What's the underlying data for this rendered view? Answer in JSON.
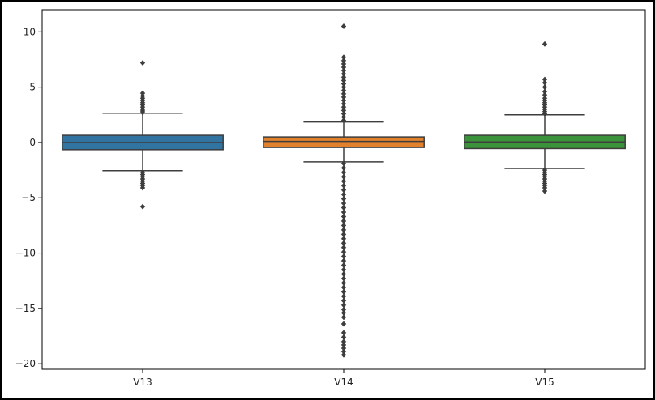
{
  "chart_data": {
    "type": "box",
    "categories": [
      "V13",
      "V14",
      "V15"
    ],
    "yticks": [
      10,
      5,
      0,
      -5,
      -10,
      -15,
      -20
    ],
    "ytick_labels": [
      "10",
      "5",
      "0",
      "−5",
      "−10",
      "−15",
      "−20"
    ],
    "ylim": [
      -20.5,
      12
    ],
    "grid": false,
    "boxes": [
      {
        "name": "V13",
        "color": "#3274a1",
        "q1": -0.65,
        "median": 0.0,
        "q3": 0.65,
        "whisker_low": -2.55,
        "whisker_high": 2.65,
        "outliers_high": [
          2.7,
          2.85,
          3.0,
          3.2,
          3.4,
          3.6,
          3.8,
          4.0,
          4.2,
          4.45,
          7.2
        ],
        "outliers_low": [
          -2.7,
          -2.9,
          -3.1,
          -3.3,
          -3.5,
          -3.7,
          -3.9,
          -4.1,
          -5.8
        ]
      },
      {
        "name": "V14",
        "color": "#e1812c",
        "q1": -0.45,
        "median": 0.1,
        "q3": 0.5,
        "whisker_low": -1.75,
        "whisker_high": 1.85,
        "outliers_high": [
          2.0,
          2.3,
          2.6,
          2.9,
          3.2,
          3.5,
          3.8,
          4.1,
          4.4,
          4.7,
          5.0,
          5.3,
          5.6,
          5.9,
          6.2,
          6.5,
          6.8,
          7.1,
          7.4,
          7.7,
          10.5
        ],
        "outliers_low": [
          -1.9,
          -2.3,
          -2.7,
          -3.1,
          -3.5,
          -3.9,
          -4.3,
          -4.7,
          -5.1,
          -5.5,
          -5.9,
          -6.3,
          -6.7,
          -7.1,
          -7.5,
          -7.9,
          -8.3,
          -8.7,
          -9.1,
          -9.5,
          -9.9,
          -10.3,
          -10.7,
          -11.1,
          -11.5,
          -11.9,
          -12.3,
          -12.7,
          -13.1,
          -13.5,
          -13.9,
          -14.3,
          -14.7,
          -15.1,
          -15.4,
          -15.8,
          -16.4,
          -17.2,
          -17.6,
          -18.0,
          -18.3,
          -18.6,
          -18.9,
          -19.2
        ]
      },
      {
        "name": "V15",
        "color": "#3a923a",
        "q1": -0.55,
        "median": 0.05,
        "q3": 0.65,
        "whisker_low": -2.35,
        "whisker_high": 2.5,
        "outliers_high": [
          2.6,
          2.8,
          3.0,
          3.2,
          3.4,
          3.6,
          3.8,
          4.0,
          4.3,
          4.6,
          5.0,
          5.4,
          5.7,
          8.9
        ],
        "outliers_low": [
          -2.5,
          -2.7,
          -2.9,
          -3.1,
          -3.3,
          -3.5,
          -3.7,
          -3.9,
          -4.1,
          -4.4
        ]
      }
    ]
  }
}
